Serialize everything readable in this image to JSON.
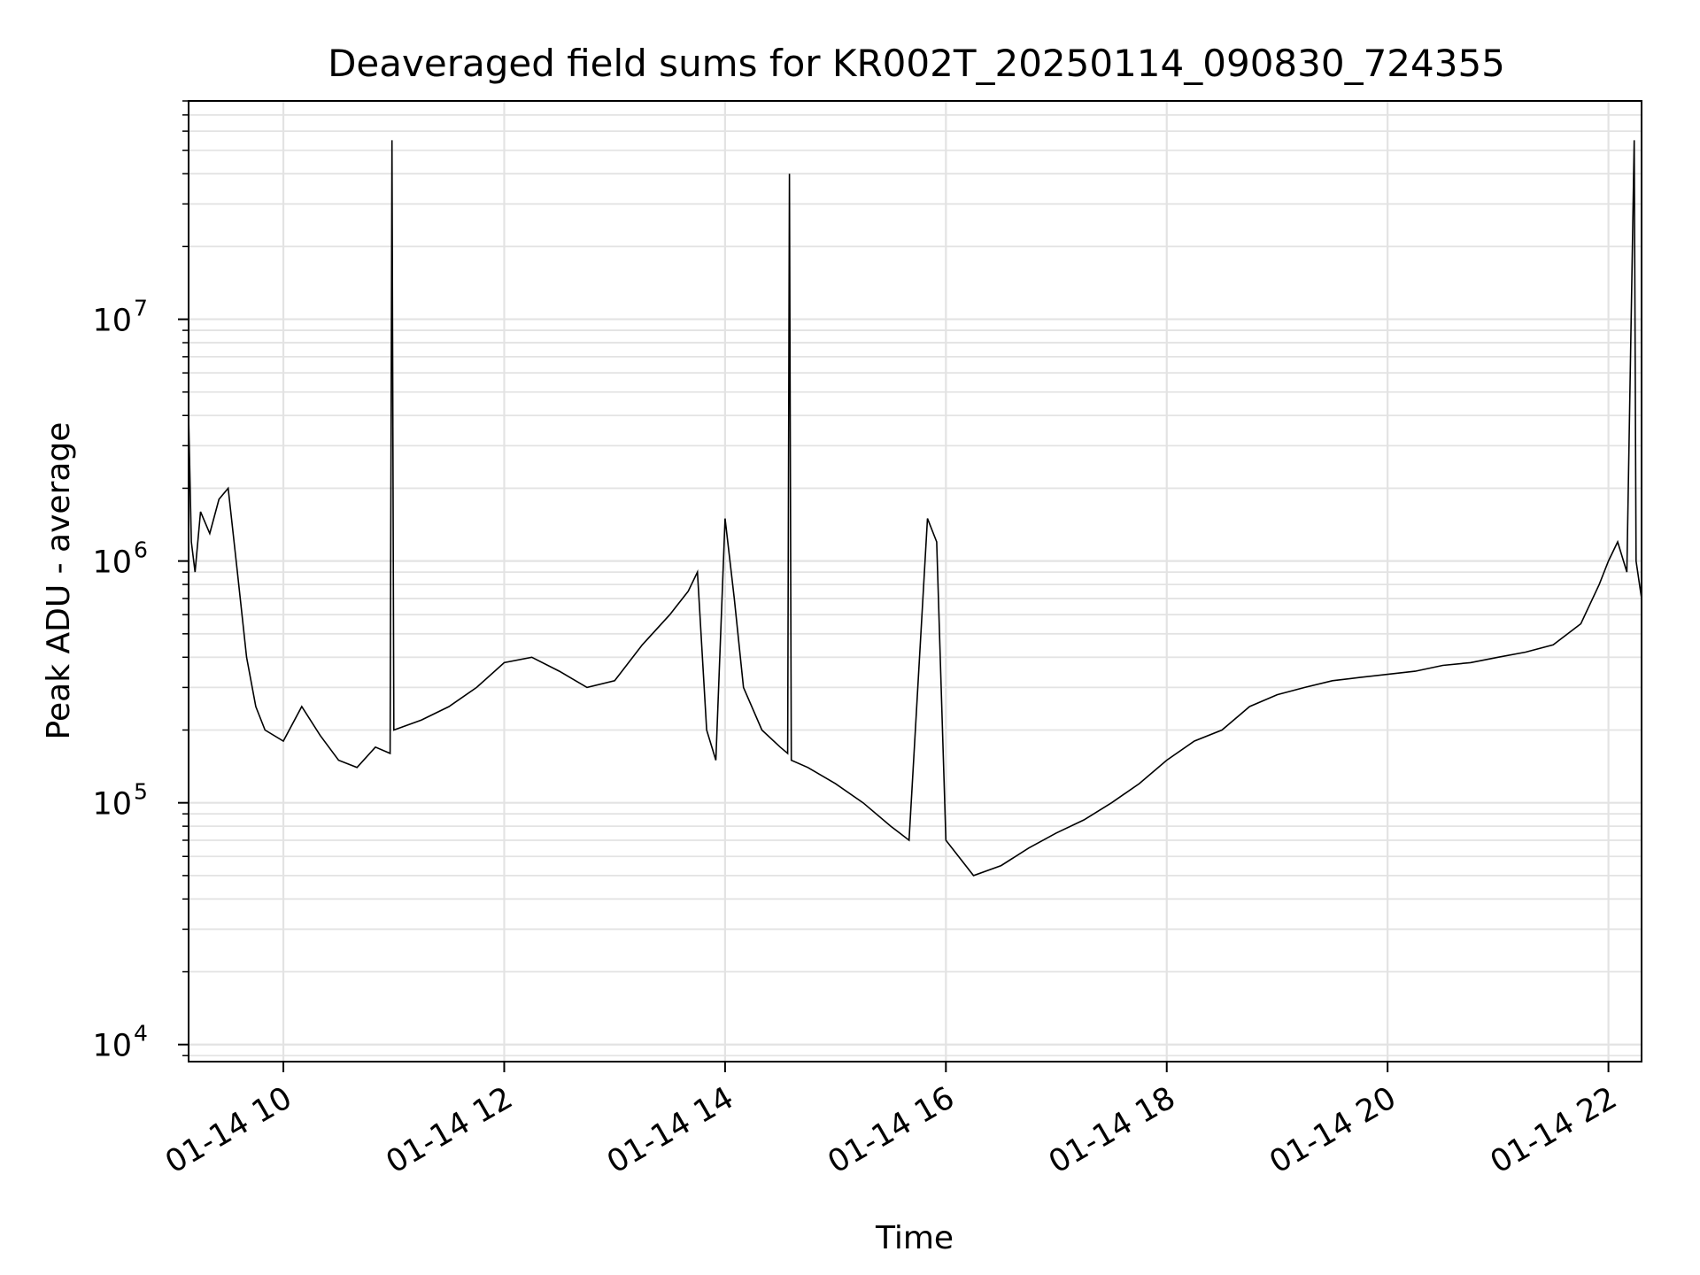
{
  "chart_data": {
    "type": "line",
    "title": "Deaveraged field sums for KR002T_20250114_090830_724355",
    "xlabel": "Time",
    "ylabel": "Peak ADU - average",
    "yscale": "log",
    "ylim": [
      8500,
      80000000
    ],
    "xlim": [
      "2025-01-14 09:08:30",
      "2025-01-14 22:18:00"
    ],
    "grid": true,
    "x_ticks": [
      {
        "label": "01-14 10",
        "time": "2025-01-14 10:00"
      },
      {
        "label": "01-14 12",
        "time": "2025-01-14 12:00"
      },
      {
        "label": "01-14 14",
        "time": "2025-01-14 14:00"
      },
      {
        "label": "01-14 16",
        "time": "2025-01-14 16:00"
      },
      {
        "label": "01-14 18",
        "time": "2025-01-14 18:00"
      },
      {
        "label": "01-14 20",
        "time": "2025-01-14 20:00"
      },
      {
        "label": "01-14 22",
        "time": "2025-01-14 22:00"
      }
    ],
    "y_ticks": [
      {
        "base": "10",
        "exp": "4",
        "value": 10000
      },
      {
        "base": "10",
        "exp": "5",
        "value": 100000
      },
      {
        "base": "10",
        "exp": "6",
        "value": 1000000
      },
      {
        "base": "10",
        "exp": "7",
        "value": 10000000
      }
    ],
    "series": [
      {
        "color": "#000000",
        "points": [
          [
            "2025-01-14 09:08:30",
            4000000
          ],
          [
            "2025-01-14 09:10",
            1200000
          ],
          [
            "2025-01-14 09:12",
            900000
          ],
          [
            "2025-01-14 09:15",
            1600000
          ],
          [
            "2025-01-14 09:20",
            1300000
          ],
          [
            "2025-01-14 09:25",
            1800000
          ],
          [
            "2025-01-14 09:30",
            2000000
          ],
          [
            "2025-01-14 09:35",
            900000
          ],
          [
            "2025-01-14 09:40",
            400000
          ],
          [
            "2025-01-14 09:45",
            250000
          ],
          [
            "2025-01-14 09:50",
            200000
          ],
          [
            "2025-01-14 10:00",
            180000
          ],
          [
            "2025-01-14 10:10",
            250000
          ],
          [
            "2025-01-14 10:20",
            190000
          ],
          [
            "2025-01-14 10:30",
            150000
          ],
          [
            "2025-01-14 10:40",
            140000
          ],
          [
            "2025-01-14 10:50",
            170000
          ],
          [
            "2025-01-14 10:58",
            160000
          ],
          [
            "2025-01-14 10:59",
            55000000
          ],
          [
            "2025-01-14 11:00",
            200000
          ],
          [
            "2025-01-14 11:15",
            220000
          ],
          [
            "2025-01-14 11:30",
            250000
          ],
          [
            "2025-01-14 11:45",
            300000
          ],
          [
            "2025-01-14 12:00",
            380000
          ],
          [
            "2025-01-14 12:15",
            400000
          ],
          [
            "2025-01-14 12:30",
            350000
          ],
          [
            "2025-01-14 12:45",
            300000
          ],
          [
            "2025-01-14 13:00",
            320000
          ],
          [
            "2025-01-14 13:15",
            450000
          ],
          [
            "2025-01-14 13:30",
            600000
          ],
          [
            "2025-01-14 13:40",
            750000
          ],
          [
            "2025-01-14 13:45",
            900000
          ],
          [
            "2025-01-14 13:50",
            200000
          ],
          [
            "2025-01-14 13:55",
            150000
          ],
          [
            "2025-01-14 14:00",
            1500000
          ],
          [
            "2025-01-14 14:05",
            700000
          ],
          [
            "2025-01-14 14:10",
            300000
          ],
          [
            "2025-01-14 14:20",
            200000
          ],
          [
            "2025-01-14 14:30",
            170000
          ],
          [
            "2025-01-14 14:34",
            160000
          ],
          [
            "2025-01-14 14:35",
            40000000
          ],
          [
            "2025-01-14 14:36",
            150000
          ],
          [
            "2025-01-14 14:45",
            140000
          ],
          [
            "2025-01-14 15:00",
            120000
          ],
          [
            "2025-01-14 15:15",
            100000
          ],
          [
            "2025-01-14 15:30",
            80000
          ],
          [
            "2025-01-14 15:40",
            70000
          ],
          [
            "2025-01-14 15:50",
            1500000
          ],
          [
            "2025-01-14 15:55",
            1200000
          ],
          [
            "2025-01-14 16:00",
            70000
          ],
          [
            "2025-01-14 16:15",
            50000
          ],
          [
            "2025-01-14 16:30",
            55000
          ],
          [
            "2025-01-14 16:45",
            65000
          ],
          [
            "2025-01-14 17:00",
            75000
          ],
          [
            "2025-01-14 17:15",
            85000
          ],
          [
            "2025-01-14 17:30",
            100000
          ],
          [
            "2025-01-14 17:45",
            120000
          ],
          [
            "2025-01-14 18:00",
            150000
          ],
          [
            "2025-01-14 18:15",
            180000
          ],
          [
            "2025-01-14 18:30",
            200000
          ],
          [
            "2025-01-14 18:45",
            250000
          ],
          [
            "2025-01-14 19:00",
            280000
          ],
          [
            "2025-01-14 19:15",
            300000
          ],
          [
            "2025-01-14 19:30",
            320000
          ],
          [
            "2025-01-14 19:45",
            330000
          ],
          [
            "2025-01-14 20:00",
            340000
          ],
          [
            "2025-01-14 20:15",
            350000
          ],
          [
            "2025-01-14 20:30",
            370000
          ],
          [
            "2025-01-14 20:45",
            380000
          ],
          [
            "2025-01-14 21:00",
            400000
          ],
          [
            "2025-01-14 21:15",
            420000
          ],
          [
            "2025-01-14 21:30",
            450000
          ],
          [
            "2025-01-14 21:45",
            550000
          ],
          [
            "2025-01-14 21:55",
            800000
          ],
          [
            "2025-01-14 22:00",
            1000000
          ],
          [
            "2025-01-14 22:05",
            1200000
          ],
          [
            "2025-01-14 22:10",
            900000
          ],
          [
            "2025-01-14 22:14",
            55000000
          ],
          [
            "2025-01-14 22:15",
            1000000
          ],
          [
            "2025-01-14 22:18",
            700000
          ]
        ]
      }
    ]
  }
}
